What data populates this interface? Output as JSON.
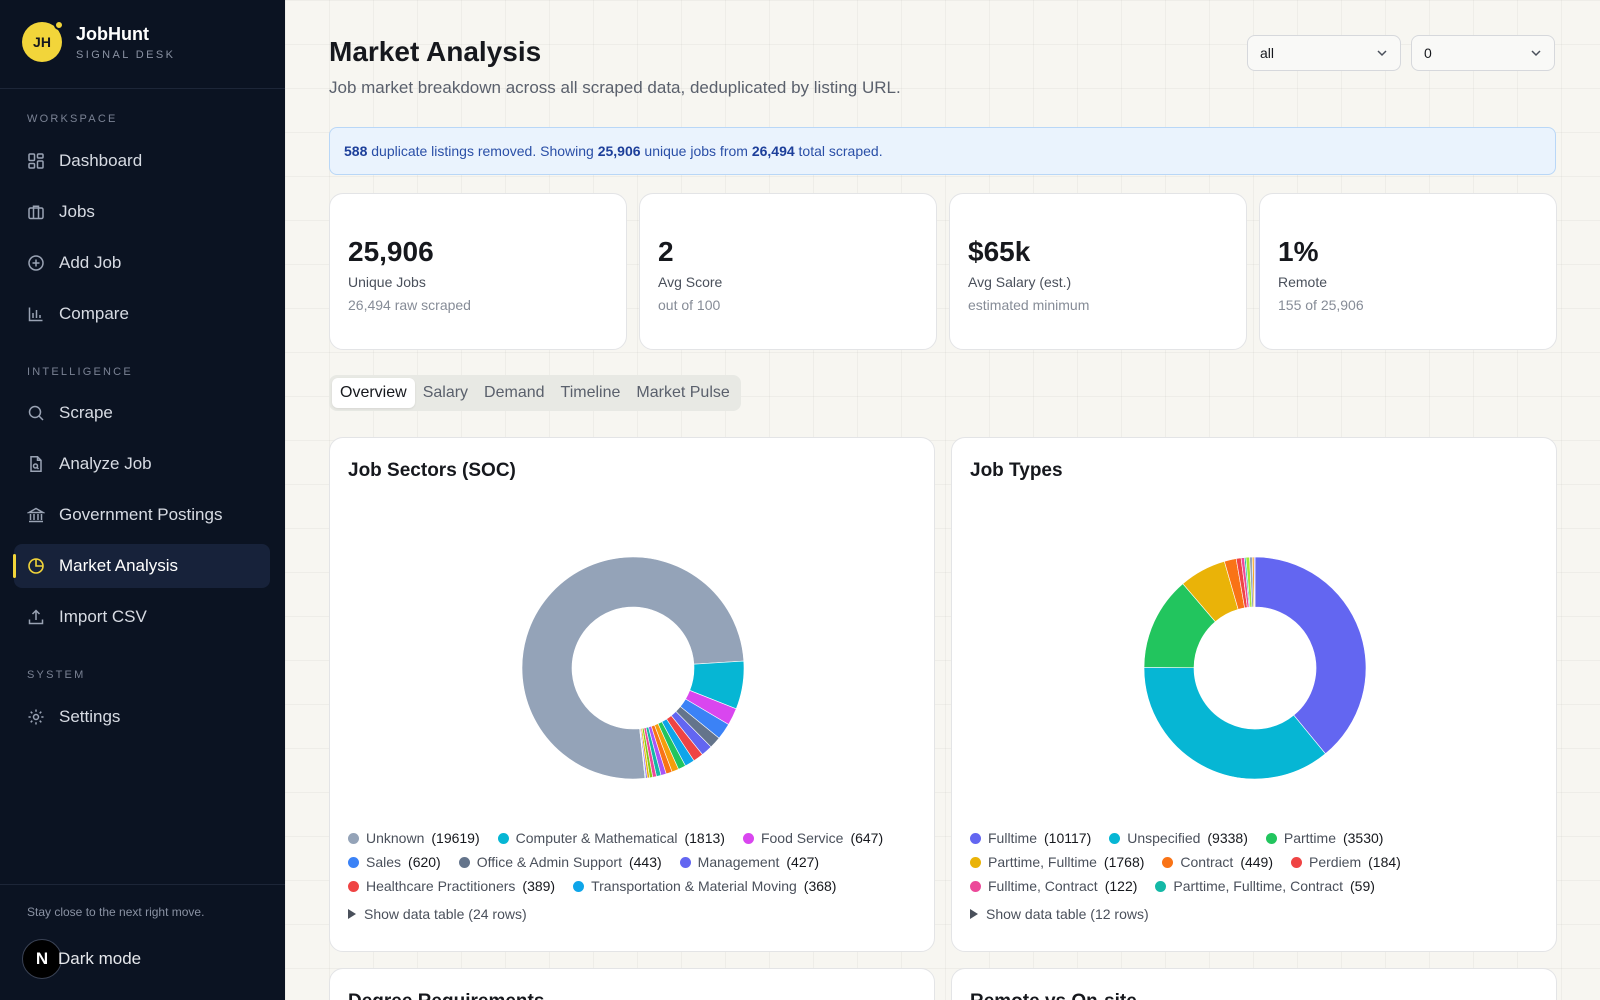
{
  "brand": {
    "initials": "JH",
    "name": "JobHunt",
    "subtitle": "SIGNAL DESK"
  },
  "sidebar": {
    "sections": [
      {
        "label": "WORKSPACE"
      },
      {
        "label": "INTELLIGENCE"
      },
      {
        "label": "SYSTEM"
      }
    ],
    "items": [
      {
        "label": "Dashboard",
        "icon": "dashboard-icon"
      },
      {
        "label": "Jobs",
        "icon": "briefcase-icon"
      },
      {
        "label": "Add Job",
        "icon": "plus-circle-icon"
      },
      {
        "label": "Compare",
        "icon": "bar-chart-icon"
      },
      {
        "label": "Scrape",
        "icon": "search-icon"
      },
      {
        "label": "Analyze Job",
        "icon": "document-icon"
      },
      {
        "label": "Government Postings",
        "icon": "building-icon"
      },
      {
        "label": "Market Analysis",
        "icon": "pie-chart-icon",
        "active": true
      },
      {
        "label": "Import CSV",
        "icon": "upload-icon"
      },
      {
        "label": "Settings",
        "icon": "gear-icon"
      }
    ],
    "tagline": "Stay close to the next right move.",
    "dark_mode_label": "Dark mode",
    "dark_mode_badge": "N"
  },
  "header": {
    "title": "Market Analysis",
    "subtitle": "Job market breakdown across all scraped data, deduplicated by listing URL.",
    "filter_1": "all",
    "filter_2": "0"
  },
  "banner": {
    "duplicates": "588",
    "text_1": " duplicate listings removed. Showing ",
    "unique": "25,906",
    "text_2": " unique jobs from ",
    "total": "26,494",
    "text_3": " total scraped."
  },
  "stats": [
    {
      "value": "25,906",
      "label": "Unique Jobs",
      "sub": "26,494 raw scraped"
    },
    {
      "value": "2",
      "label": "Avg Score",
      "sub": "out of 100"
    },
    {
      "value": "$65k",
      "label": "Avg Salary (est.)",
      "sub": "estimated minimum"
    },
    {
      "value": "1%",
      "label": "Remote",
      "sub": "155 of 25,906"
    }
  ],
  "tabs": [
    {
      "label": "Overview",
      "active": true
    },
    {
      "label": "Salary"
    },
    {
      "label": "Demand"
    },
    {
      "label": "Timeline"
    },
    {
      "label": "Market Pulse"
    }
  ],
  "panels": {
    "sectors": {
      "title": "Job Sectors (SOC)",
      "show_table": "Show data table (24 rows)"
    },
    "types": {
      "title": "Job Types",
      "show_table": "Show data table (12 rows)"
    },
    "degree": {
      "title": "Degree Requirements"
    },
    "remote": {
      "title": "Remote vs On-site"
    }
  },
  "chart_data": [
    {
      "type": "pie",
      "title": "Job Sectors (SOC)",
      "donut": true,
      "total": 25906,
      "legend": [
        {
          "name": "Unknown",
          "value": 19619,
          "color": "#94a3b8"
        },
        {
          "name": "Computer & Mathematical",
          "value": 1813,
          "color": "#06b6d4"
        },
        {
          "name": "Food Service",
          "value": 647,
          "color": "#d946ef"
        },
        {
          "name": "Sales",
          "value": 620,
          "color": "#3b82f6"
        },
        {
          "name": "Office & Admin Support",
          "value": 443,
          "color": "#64748b"
        },
        {
          "name": "Management",
          "value": 427,
          "color": "#6366f1"
        },
        {
          "name": "Healthcare Practitioners",
          "value": 389,
          "color": "#ef4444"
        },
        {
          "name": "Transportation & Material Moving",
          "value": 368,
          "color": "#0ea5e9"
        }
      ],
      "extra_slice_colors": [
        "#22c55e",
        "#f59e0b",
        "#f97316",
        "#a855f7",
        "#14b8a6",
        "#ec4899",
        "#84cc16",
        "#eab308",
        "#8b5cf6",
        "#10b981"
      ]
    },
    {
      "type": "pie",
      "title": "Job Types",
      "donut": true,
      "total": 25906,
      "legend": [
        {
          "name": "Fulltime",
          "value": 10117,
          "color": "#6366f1"
        },
        {
          "name": "Unspecified",
          "value": 9338,
          "color": "#06b6d4"
        },
        {
          "name": "Parttime",
          "value": 3530,
          "color": "#22c55e"
        },
        {
          "name": "Parttime, Fulltime",
          "value": 1768,
          "color": "#eab308"
        },
        {
          "name": "Contract",
          "value": 449,
          "color": "#f97316"
        },
        {
          "name": "Perdiem",
          "value": 184,
          "color": "#ef4444"
        },
        {
          "name": "Fulltime, Contract",
          "value": 122,
          "color": "#ec4899"
        },
        {
          "name": "Parttime, Fulltime, Contract",
          "value": 59,
          "color": "#14b8a6"
        }
      ],
      "extra_slice_colors": [
        "#a3e635",
        "#94a3b8",
        "#f59e0b",
        "#8b5cf6"
      ]
    }
  ]
}
